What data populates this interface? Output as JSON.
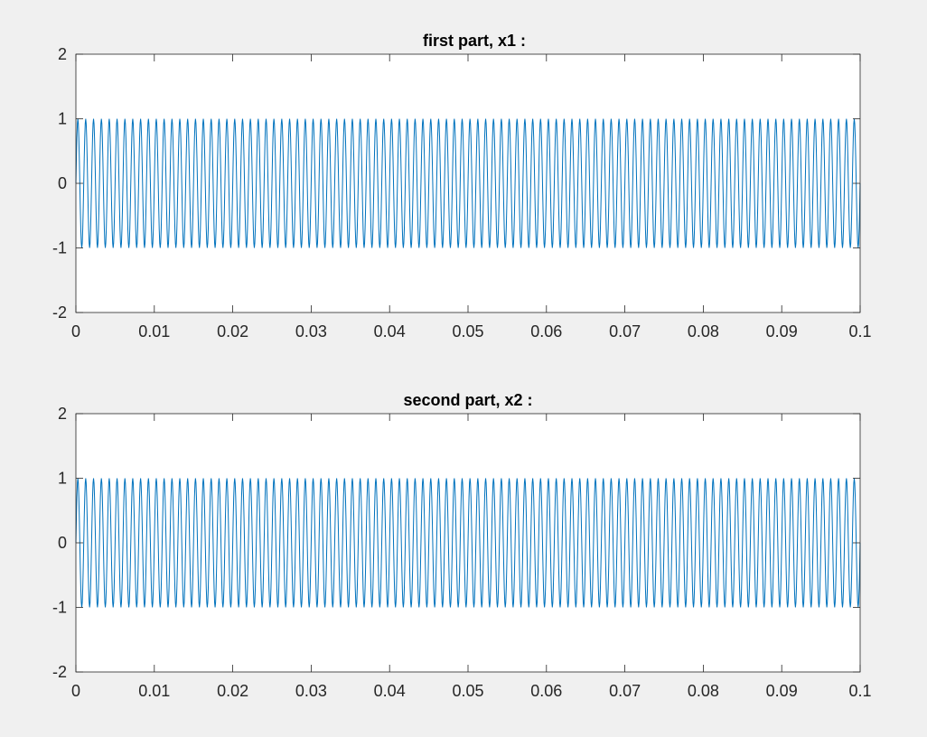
{
  "chart_data": [
    {
      "type": "line",
      "title": "first part, x1 :",
      "xlabel": "",
      "ylabel": "",
      "xlim": [
        0,
        0.1
      ],
      "ylim": [
        -2,
        2
      ],
      "xticks": [
        "0",
        "0.01",
        "0.02",
        "0.03",
        "0.04",
        "0.05",
        "0.06",
        "0.07",
        "0.08",
        "0.09",
        "0.1"
      ],
      "yticks": [
        "2",
        "1",
        "0",
        "-1",
        "-2"
      ],
      "grid": false,
      "series": [
        {
          "color": "#0072bd",
          "function": "sin",
          "amplitude": 1,
          "frequency_hz": 1000,
          "x_start": 0,
          "x_end": 0.1
        }
      ]
    },
    {
      "type": "line",
      "title": "second part, x2 :",
      "xlabel": "",
      "ylabel": "",
      "xlim": [
        0,
        0.1
      ],
      "ylim": [
        -2,
        2
      ],
      "xticks": [
        "0",
        "0.01",
        "0.02",
        "0.03",
        "0.04",
        "0.05",
        "0.06",
        "0.07",
        "0.08",
        "0.09",
        "0.1"
      ],
      "yticks": [
        "2",
        "1",
        "0",
        "-1",
        "-2"
      ],
      "grid": false,
      "series": [
        {
          "color": "#0072bd",
          "function": "sin",
          "amplitude": 1,
          "frequency_hz": 1000,
          "x_start": 0,
          "x_end": 0.1
        }
      ]
    }
  ]
}
